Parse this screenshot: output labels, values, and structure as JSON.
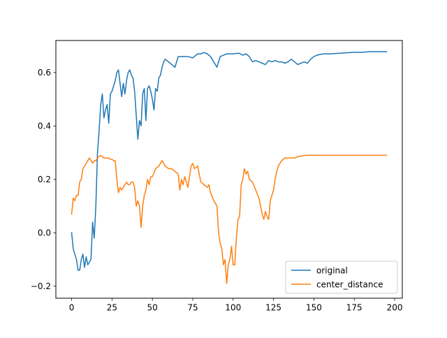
{
  "chart_data": {
    "type": "line",
    "title": "",
    "xlabel": "",
    "ylabel": "",
    "xlim": [
      -9.75,
      204.75
    ],
    "ylim": [
      -0.245,
      0.72
    ],
    "xticks": [
      0,
      25,
      50,
      75,
      100,
      125,
      150,
      175,
      200
    ],
    "xtick_labels": [
      "0",
      "25",
      "50",
      "75",
      "100",
      "125",
      "150",
      "175",
      "200"
    ],
    "yticks": [
      -0.2,
      0.0,
      0.2,
      0.4,
      0.6
    ],
    "ytick_labels": [
      "−0.2",
      "0.0",
      "0.2",
      "0.4",
      "0.6"
    ],
    "grid": false,
    "legend_position": "lower-right",
    "series": [
      {
        "name": "original",
        "color": "#1f77b4",
        "x": [
          0,
          1,
          2,
          3,
          4,
          5,
          6,
          7,
          8,
          9,
          10,
          11,
          12,
          13,
          14,
          15,
          16,
          17,
          18,
          19,
          20,
          21,
          22,
          23,
          24,
          25,
          26,
          27,
          28,
          29,
          30,
          31,
          32,
          33,
          34,
          35,
          36,
          37,
          38,
          39,
          40,
          41,
          42,
          43,
          44,
          45,
          46,
          47,
          48,
          49,
          50,
          51,
          52,
          53,
          54,
          55,
          56,
          57,
          58,
          60,
          62,
          64,
          66,
          68,
          70,
          72,
          75,
          78,
          80,
          82,
          84,
          86,
          88,
          90,
          92,
          94,
          96,
          98,
          100,
          102,
          104,
          106,
          108,
          110,
          112,
          114,
          116,
          118,
          120,
          122,
          124,
          126,
          128,
          130,
          132,
          134,
          136,
          138,
          140,
          142,
          144,
          146,
          148,
          150,
          152,
          154,
          156,
          158,
          160,
          165,
          170,
          175,
          180,
          185,
          190,
          195
        ],
        "values": [
          0.0,
          -0.06,
          -0.08,
          -0.1,
          -0.14,
          -0.14,
          -0.1,
          -0.08,
          -0.13,
          -0.09,
          -0.12,
          -0.11,
          -0.1,
          0.04,
          -0.02,
          0.1,
          0.3,
          0.38,
          0.48,
          0.52,
          0.43,
          0.46,
          0.48,
          0.41,
          0.52,
          0.53,
          0.55,
          0.57,
          0.6,
          0.61,
          0.56,
          0.51,
          0.56,
          0.52,
          0.57,
          0.6,
          0.61,
          0.59,
          0.58,
          0.53,
          0.44,
          0.35,
          0.42,
          0.4,
          0.52,
          0.54,
          0.42,
          0.54,
          0.55,
          0.53,
          0.5,
          0.46,
          0.54,
          0.53,
          0.58,
          0.59,
          0.62,
          0.64,
          0.65,
          0.64,
          0.63,
          0.62,
          0.66,
          0.66,
          0.66,
          0.66,
          0.655,
          0.67,
          0.67,
          0.675,
          0.67,
          0.66,
          0.64,
          0.62,
          0.66,
          0.665,
          0.67,
          0.67,
          0.67,
          0.672,
          0.672,
          0.665,
          0.67,
          0.66,
          0.64,
          0.645,
          0.64,
          0.635,
          0.63,
          0.645,
          0.64,
          0.645,
          0.64,
          0.64,
          0.635,
          0.64,
          0.65,
          0.64,
          0.63,
          0.635,
          0.64,
          0.635,
          0.65,
          0.66,
          0.665,
          0.668,
          0.67,
          0.67,
          0.67,
          0.672,
          0.674,
          0.676,
          0.676,
          0.678,
          0.678,
          0.678
        ]
      },
      {
        "name": "center_distance",
        "color": "#ff7f0e",
        "x": [
          0,
          1,
          2,
          3,
          4,
          5,
          6,
          7,
          8,
          9,
          10,
          11,
          12,
          13,
          14,
          15,
          16,
          17,
          18,
          19,
          20,
          21,
          22,
          23,
          24,
          25,
          26,
          27,
          28,
          29,
          30,
          31,
          32,
          33,
          34,
          35,
          36,
          37,
          38,
          39,
          40,
          41,
          42,
          43,
          44,
          45,
          46,
          47,
          48,
          49,
          50,
          52,
          54,
          56,
          58,
          60,
          62,
          64,
          66,
          67,
          68,
          69,
          70,
          72,
          74,
          75,
          76,
          78,
          80,
          82,
          84,
          85,
          86,
          88,
          90,
          91,
          92,
          93,
          94,
          95,
          96,
          97,
          98,
          99,
          100,
          101,
          102,
          103,
          104,
          105,
          106,
          107,
          108,
          109,
          110,
          112,
          114,
          116,
          118,
          119,
          120,
          121,
          122,
          123,
          124,
          125,
          126,
          127,
          128,
          129,
          130,
          132,
          134,
          136,
          138,
          140,
          145,
          150,
          155,
          160,
          165,
          170,
          175,
          180,
          185,
          190,
          195
        ],
        "values": [
          0.07,
          0.13,
          0.12,
          0.14,
          0.14,
          0.19,
          0.2,
          0.24,
          0.25,
          0.26,
          0.27,
          0.28,
          0.27,
          0.26,
          0.27,
          0.27,
          0.28,
          0.285,
          0.29,
          0.285,
          0.28,
          0.28,
          0.28,
          0.28,
          0.275,
          0.275,
          0.27,
          0.27,
          0.2,
          0.15,
          0.17,
          0.16,
          0.17,
          0.18,
          0.19,
          0.18,
          0.18,
          0.19,
          0.19,
          0.17,
          0.1,
          0.12,
          0.1,
          0.02,
          0.1,
          0.14,
          0.16,
          0.2,
          0.18,
          0.21,
          0.21,
          0.24,
          0.25,
          0.27,
          0.25,
          0.24,
          0.24,
          0.23,
          0.22,
          0.16,
          0.2,
          0.18,
          0.21,
          0.17,
          0.25,
          0.26,
          0.24,
          0.25,
          0.19,
          0.18,
          0.17,
          0.18,
          0.15,
          0.12,
          0.1,
          0.0,
          -0.04,
          -0.06,
          -0.12,
          -0.1,
          -0.19,
          -0.12,
          -0.1,
          -0.05,
          -0.12,
          -0.12,
          -0.02,
          0.05,
          0.06,
          0.18,
          0.2,
          0.24,
          0.22,
          0.23,
          0.2,
          0.19,
          0.16,
          0.13,
          0.07,
          0.05,
          0.08,
          0.06,
          0.05,
          0.12,
          0.14,
          0.16,
          0.2,
          0.23,
          0.25,
          0.26,
          0.27,
          0.28,
          0.28,
          0.28,
          0.28,
          0.285,
          0.29,
          0.29,
          0.29,
          0.29,
          0.29,
          0.29,
          0.29,
          0.29,
          0.29,
          0.29,
          0.29
        ]
      }
    ]
  }
}
